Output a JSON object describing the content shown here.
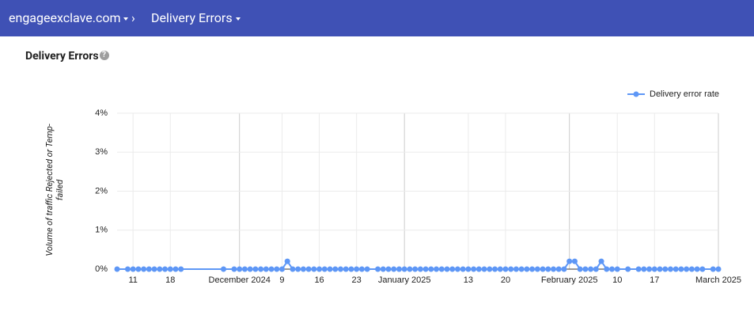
{
  "header": {
    "domain": "engageexclave.com",
    "page": "Delivery Errors"
  },
  "chart_data": {
    "type": "line",
    "title": "Delivery Errors",
    "y_label": "Volume of traffic Rejected or Temp-failed",
    "x": [
      "2024-11-08",
      "2024-11-10",
      "2024-11-11",
      "2024-11-12",
      "2024-11-13",
      "2024-11-14",
      "2024-11-15",
      "2024-11-16",
      "2024-11-17",
      "2024-11-18",
      "2024-11-19",
      "2024-11-20",
      "2024-11-28",
      "2024-11-30",
      "2024-12-01",
      "2024-12-02",
      "2024-12-03",
      "2024-12-04",
      "2024-12-05",
      "2024-12-06",
      "2024-12-07",
      "2024-12-08",
      "2024-12-09",
      "2024-12-10",
      "2024-12-11",
      "2024-12-12",
      "2024-12-13",
      "2024-12-14",
      "2024-12-15",
      "2024-12-16",
      "2024-12-17",
      "2024-12-18",
      "2024-12-19",
      "2024-12-20",
      "2024-12-21",
      "2024-12-22",
      "2024-12-23",
      "2024-12-24",
      "2024-12-25",
      "2024-12-27",
      "2024-12-28",
      "2024-12-29",
      "2024-12-30",
      "2024-12-31",
      "2025-01-01",
      "2025-01-02",
      "2025-01-03",
      "2025-01-04",
      "2025-01-05",
      "2025-01-06",
      "2025-01-07",
      "2025-01-08",
      "2025-01-09",
      "2025-01-10",
      "2025-01-11",
      "2025-01-12",
      "2025-01-13",
      "2025-01-14",
      "2025-01-15",
      "2025-01-16",
      "2025-01-17",
      "2025-01-18",
      "2025-01-19",
      "2025-01-20",
      "2025-01-21",
      "2025-01-22",
      "2025-01-23",
      "2025-01-24",
      "2025-01-25",
      "2025-01-26",
      "2025-01-27",
      "2025-01-28",
      "2025-01-29",
      "2025-01-30",
      "2025-01-31",
      "2025-02-01",
      "2025-02-02",
      "2025-02-03",
      "2025-02-04",
      "2025-02-05",
      "2025-02-06",
      "2025-02-07",
      "2025-02-08",
      "2025-02-09",
      "2025-02-10",
      "2025-02-12",
      "2025-02-14",
      "2025-02-15",
      "2025-02-16",
      "2025-02-17",
      "2025-02-18",
      "2025-02-19",
      "2025-02-20",
      "2025-02-21",
      "2025-02-22",
      "2025-02-23",
      "2025-02-24",
      "2025-02-25",
      "2025-02-26",
      "2025-02-28",
      "2025-03-01"
    ],
    "series": [
      {
        "name": "Delivery error rate",
        "color": "#5e97f6",
        "values": [
          0,
          0,
          0,
          0,
          0,
          0,
          0,
          0,
          0,
          0,
          0,
          0,
          0,
          0,
          0,
          0,
          0,
          0,
          0,
          0,
          0,
          0,
          0,
          0.2,
          0,
          0,
          0,
          0,
          0,
          0,
          0,
          0,
          0,
          0,
          0,
          0,
          0,
          0,
          0,
          0,
          0,
          0,
          0,
          0,
          0,
          0,
          0,
          0,
          0,
          0,
          0,
          0,
          0,
          0,
          0,
          0,
          0,
          0,
          0,
          0,
          0,
          0,
          0,
          0,
          0,
          0,
          0,
          0,
          0,
          0,
          0,
          0,
          0,
          0,
          0,
          0.2,
          0.2,
          0,
          0,
          0,
          0,
          0.2,
          0,
          0,
          0,
          0,
          0,
          0,
          0,
          0,
          0,
          0,
          0,
          0,
          0,
          0,
          0,
          0,
          0,
          0,
          0
        ]
      }
    ],
    "xlim": [
      "2024-11-08",
      "2025-03-01"
    ],
    "xticks": [
      {
        "value": "2024-11-11",
        "label": "11"
      },
      {
        "value": "2024-11-18",
        "label": "18"
      },
      {
        "value": "2024-12-01",
        "label": "December 2024"
      },
      {
        "value": "2024-12-09",
        "label": "9"
      },
      {
        "value": "2024-12-16",
        "label": "16"
      },
      {
        "value": "2024-12-23",
        "label": "23"
      },
      {
        "value": "2025-01-01",
        "label": "January 2025"
      },
      {
        "value": "2025-01-13",
        "label": "13"
      },
      {
        "value": "2025-01-20",
        "label": "20"
      },
      {
        "value": "2025-02-01",
        "label": "February 2025"
      },
      {
        "value": "2025-02-10",
        "label": "10"
      },
      {
        "value": "2025-02-17",
        "label": "17"
      },
      {
        "value": "2025-03-01",
        "label": "March 2025"
      }
    ],
    "ylim": [
      0,
      4
    ],
    "yticks": [
      {
        "value": 0,
        "label": "0%"
      },
      {
        "value": 1,
        "label": "1%"
      },
      {
        "value": 2,
        "label": "2%"
      },
      {
        "value": 3,
        "label": "3%"
      },
      {
        "value": 4,
        "label": "4%"
      }
    ],
    "grid": true,
    "legend": "top-right"
  }
}
